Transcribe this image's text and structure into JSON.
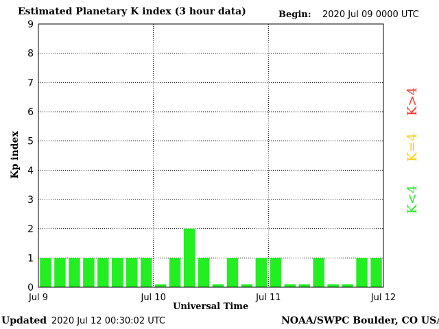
{
  "header": {
    "title": "Estimated Planetary K index (3 hour data)",
    "begin_label": "Begin:",
    "begin_value": "2020 Jul 09 0000 UTC"
  },
  "footer": {
    "updated_label": "Updated",
    "updated_value": "2020 Jul 12 00:30:02 UTC",
    "credit": "NOAA/SWPC Boulder, CO USA"
  },
  "legend": [
    {
      "label": "K<4",
      "color": "#22ee22"
    },
    {
      "label": "K=4",
      "color": "#ffcc00"
    },
    {
      "label": "K>4",
      "color": "#ff3322"
    }
  ],
  "chart_data": {
    "type": "bar",
    "title": "Estimated Planetary K index (3 hour data)",
    "xlabel": "Universal Time",
    "ylabel": "Kp index",
    "ylim": [
      0,
      9
    ],
    "yticks": [
      "0",
      "1",
      "2",
      "3",
      "4",
      "5",
      "6",
      "7",
      "8",
      "9"
    ],
    "xticks": [
      "Jul 9",
      "Jul 10",
      "Jul 11",
      "Jul 12"
    ],
    "grid": true,
    "bar_color": "#22ee22",
    "values": [
      1,
      1,
      1,
      1,
      1,
      1,
      1,
      1,
      0.1,
      1,
      2,
      1,
      0.1,
      1,
      0.1,
      1,
      1,
      0.1,
      0.1,
      1,
      0.1,
      0.1,
      1,
      1
    ]
  }
}
